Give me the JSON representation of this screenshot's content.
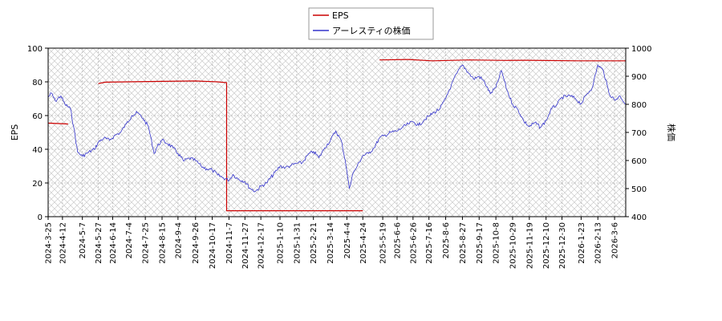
{
  "chart_data": {
    "type": "line",
    "title": "",
    "legend": {
      "placement": "top-center",
      "entries": [
        {
          "name": "EPS",
          "color": "#cc0000"
        },
        {
          "name": "アーレスティの株価",
          "color": "#3333cc"
        }
      ]
    },
    "y_left": {
      "label": "EPS",
      "range": [
        0,
        100
      ],
      "ticks": [
        0,
        20,
        40,
        60,
        80,
        100
      ]
    },
    "y_right": {
      "label": "株価",
      "range": [
        400,
        1000
      ],
      "ticks": [
        400,
        500,
        600,
        700,
        800,
        900,
        1000
      ]
    },
    "x_axis": {
      "range": [
        "2024-03-25",
        "2026-03-20"
      ],
      "ticks": [
        "2024-3-25",
        "2024-4-12",
        "2024-5-7",
        "2024-5-27",
        "2024-6-14",
        "2024-7-4",
        "2024-7-25",
        "2024-8-15",
        "2024-9-4",
        "2024-9-26",
        "2024-10-17",
        "2024-11-7",
        "2024-11-27",
        "2024-12-17",
        "2025-1-10",
        "2025-1-31",
        "2025-2-21",
        "2025-3-14",
        "2025-4-4",
        "2025-4-24",
        "2025-5-19",
        "2025-6-6",
        "2025-6-26",
        "2025-7-16",
        "2025-8-6",
        "2025-8-27",
        "2025-9-17",
        "2025-10-8",
        "2025-10-29",
        "2025-11-19",
        "2025-12-10",
        "2025-12-30",
        "2026-1-23",
        "2026-2-13",
        "2026-3-6"
      ]
    },
    "grid": true,
    "series": [
      {
        "name": "EPS",
        "axis": "left",
        "color": "#cc0000",
        "segments": [
          [
            [
              "2024-03-25",
              55.5
            ],
            [
              "2024-04-19",
              55.0
            ]
          ],
          [
            [
              "2024-05-27",
              79.0
            ],
            [
              "2024-06-05",
              79.8
            ],
            [
              "2024-07-01",
              80.0
            ],
            [
              "2024-08-15",
              80.3
            ],
            [
              "2024-09-26",
              80.5
            ],
            [
              "2024-10-24",
              80.0
            ],
            [
              "2024-11-04",
              79.5
            ],
            [
              "2024-11-04",
              3.5
            ],
            [
              "2025-04-24",
              3.5
            ]
          ],
          [
            [
              "2025-05-15",
              93.0
            ],
            [
              "2025-06-20",
              93.3
            ],
            [
              "2025-07-20",
              92.5
            ],
            [
              "2025-09-05",
              93.0
            ],
            [
              "2025-10-20",
              92.7
            ],
            [
              "2025-11-15",
              92.8
            ],
            [
              "2026-01-20",
              92.5
            ],
            [
              "2026-03-20",
              92.5
            ]
          ]
        ]
      },
      {
        "name": "アーレスティの株価",
        "axis": "right",
        "color": "#3333cc",
        "points": [
          [
            "2024-03-25",
            825
          ],
          [
            "2024-03-29",
            840
          ],
          [
            "2024-04-03",
            812
          ],
          [
            "2024-04-10",
            830
          ],
          [
            "2024-04-15",
            800
          ],
          [
            "2024-04-22",
            785
          ],
          [
            "2024-04-26",
            720
          ],
          [
            "2024-05-01",
            630
          ],
          [
            "2024-05-07",
            615
          ],
          [
            "2024-05-14",
            628
          ],
          [
            "2024-05-22",
            640
          ],
          [
            "2024-05-27",
            665
          ],
          [
            "2024-06-03",
            680
          ],
          [
            "2024-06-10",
            672
          ],
          [
            "2024-06-17",
            690
          ],
          [
            "2024-06-24",
            700
          ],
          [
            "2024-07-01",
            730
          ],
          [
            "2024-07-08",
            760
          ],
          [
            "2024-07-15",
            770
          ],
          [
            "2024-07-22",
            750
          ],
          [
            "2024-07-29",
            720
          ],
          [
            "2024-08-05",
            625
          ],
          [
            "2024-08-09",
            650
          ],
          [
            "2024-08-15",
            672
          ],
          [
            "2024-08-22",
            660
          ],
          [
            "2024-08-29",
            645
          ],
          [
            "2024-09-04",
            625
          ],
          [
            "2024-09-11",
            598
          ],
          [
            "2024-09-18",
            608
          ],
          [
            "2024-09-26",
            600
          ],
          [
            "2024-10-03",
            580
          ],
          [
            "2024-10-10",
            570
          ],
          [
            "2024-10-17",
            566
          ],
          [
            "2024-10-24",
            548
          ],
          [
            "2024-10-31",
            538
          ],
          [
            "2024-11-07",
            530
          ],
          [
            "2024-11-12",
            550
          ],
          [
            "2024-11-18",
            535
          ],
          [
            "2024-11-27",
            525
          ],
          [
            "2024-12-03",
            502
          ],
          [
            "2024-12-10",
            490
          ],
          [
            "2024-12-17",
            508
          ],
          [
            "2024-12-24",
            520
          ],
          [
            "2025-01-06",
            565
          ],
          [
            "2025-01-10",
            580
          ],
          [
            "2025-01-17",
            575
          ],
          [
            "2025-01-24",
            582
          ],
          [
            "2025-01-31",
            590
          ],
          [
            "2025-02-07",
            592
          ],
          [
            "2025-02-14",
            620
          ],
          [
            "2025-02-21",
            632
          ],
          [
            "2025-02-28",
            610
          ],
          [
            "2025-03-07",
            645
          ],
          [
            "2025-03-14",
            670
          ],
          [
            "2025-03-21",
            705
          ],
          [
            "2025-03-28",
            670
          ],
          [
            "2025-04-02",
            600
          ],
          [
            "2025-04-07",
            500
          ],
          [
            "2025-04-11",
            550
          ],
          [
            "2025-04-17",
            580
          ],
          [
            "2025-04-24",
            618
          ],
          [
            "2025-05-01",
            625
          ],
          [
            "2025-05-08",
            645
          ],
          [
            "2025-05-15",
            680
          ],
          [
            "2025-05-22",
            690
          ],
          [
            "2025-05-29",
            700
          ],
          [
            "2025-06-06",
            705
          ],
          [
            "2025-06-13",
            718
          ],
          [
            "2025-06-20",
            730
          ],
          [
            "2025-06-26",
            738
          ],
          [
            "2025-07-03",
            725
          ],
          [
            "2025-07-10",
            745
          ],
          [
            "2025-07-16",
            758
          ],
          [
            "2025-07-23",
            772
          ],
          [
            "2025-07-30",
            785
          ],
          [
            "2025-08-06",
            820
          ],
          [
            "2025-08-13",
            868
          ],
          [
            "2025-08-20",
            910
          ],
          [
            "2025-08-27",
            940
          ],
          [
            "2025-09-03",
            915
          ],
          [
            "2025-09-10",
            890
          ],
          [
            "2025-09-17",
            900
          ],
          [
            "2025-09-24",
            878
          ],
          [
            "2025-10-01",
            838
          ],
          [
            "2025-10-08",
            860
          ],
          [
            "2025-10-15",
            920
          ],
          [
            "2025-10-22",
            850
          ],
          [
            "2025-10-29",
            800
          ],
          [
            "2025-11-05",
            780
          ],
          [
            "2025-11-12",
            740
          ],
          [
            "2025-11-19",
            720
          ],
          [
            "2025-11-26",
            735
          ],
          [
            "2025-12-03",
            718
          ],
          [
            "2025-12-10",
            742
          ],
          [
            "2025-12-17",
            785
          ],
          [
            "2025-12-24",
            800
          ],
          [
            "2025-12-30",
            825
          ],
          [
            "2026-01-09",
            830
          ],
          [
            "2026-01-16",
            820
          ],
          [
            "2026-01-23",
            802
          ],
          [
            "2026-01-30",
            835
          ],
          [
            "2026-02-06",
            860
          ],
          [
            "2026-02-13",
            940
          ],
          [
            "2026-02-20",
            920
          ],
          [
            "2026-02-27",
            840
          ],
          [
            "2026-03-06",
            815
          ],
          [
            "2026-03-13",
            830
          ],
          [
            "2026-03-20",
            800
          ]
        ]
      }
    ]
  }
}
